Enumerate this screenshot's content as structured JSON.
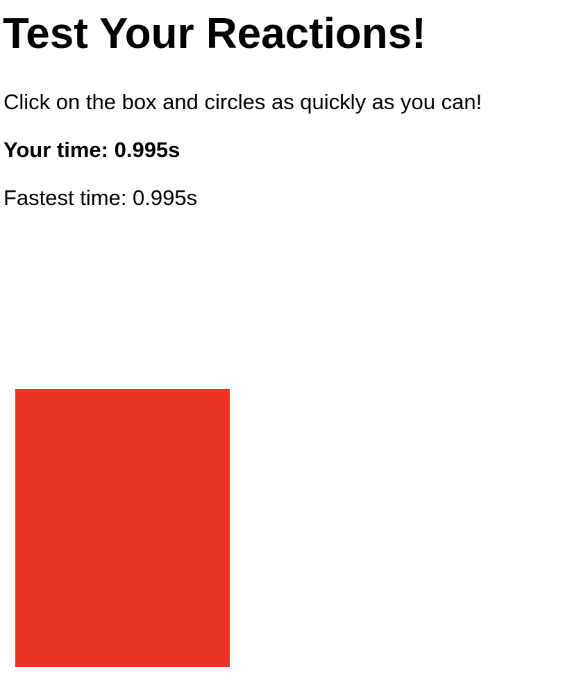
{
  "header": {
    "title": "Test Your Reactions!"
  },
  "game": {
    "instructions": "Click on the box and circles as quickly as you can!",
    "your_time": "Your time: 0.995s",
    "fastest_time": "Fastest time: 0.995s",
    "target": {
      "shape": "box",
      "color": "#ea3424"
    }
  }
}
